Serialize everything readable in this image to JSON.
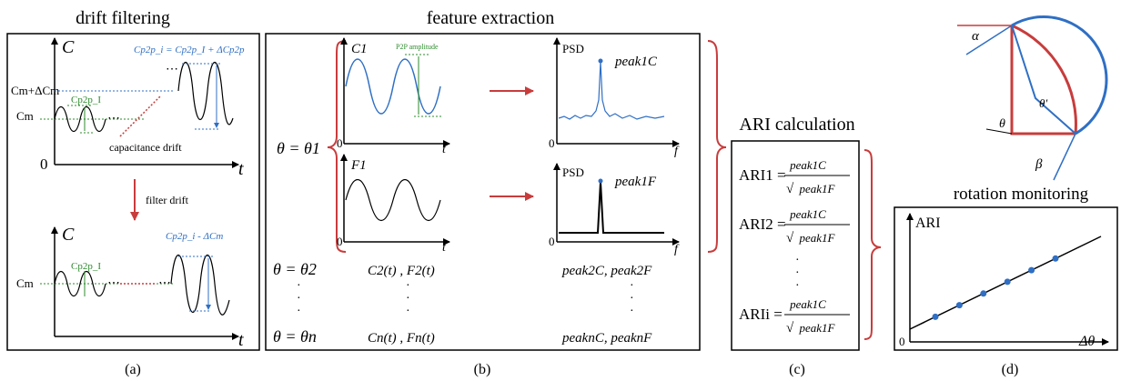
{
  "titles": {
    "a": "drift filtering",
    "b": "feature extraction",
    "c": "ARI calculation",
    "d": "rotation monitoring"
  },
  "panel_labels": {
    "a": "(a)",
    "b": "(b)",
    "c": "(c)",
    "d": "(d)"
  },
  "panel_a": {
    "axis_y": "C",
    "axis_x": "t",
    "origin": "0",
    "level_cm": "Cm",
    "level_cm_delta": "Cm+ΔCm",
    "p2p_label": "Cp2p_I",
    "drift_eq": "Cp2p_i = Cp2p_I + ΔCp2p",
    "drift_note": "capacitance drift",
    "arrow_label": "filter drift",
    "filtered_eq": "Cp2p_i - ΔCm",
    "colors": {
      "blue": "#2f6fc4",
      "green": "#2e8b2e",
      "red": "#c83c3c"
    }
  },
  "panel_b": {
    "theta_1": "θ = θ1",
    "c1_label": "C1",
    "f1_label": "F1",
    "psd_label": "PSD",
    "amplitude_note": "P2P amplitude",
    "peak_c": "peak1C",
    "peak_f": "peak1F",
    "axis_t": "t",
    "axis_f": "f",
    "origin": "0",
    "theta_2": "θ = θ2",
    "signals_2": "C2(t) , F2(t)",
    "peaks_2": "peak2C, peak2F",
    "theta_n": "θ = θn",
    "signals_n": "Cn(t) , Fn(t)",
    "peaks_n": "peaknC, peaknF"
  },
  "panel_c": {
    "rows": [
      {
        "lhs": "ARI1 =",
        "num": "peak1C",
        "den": "peak1F"
      },
      {
        "lhs": "ARI2 =",
        "num": "peak1C",
        "den": "peak1F"
      },
      {
        "lhs": "ARIi =",
        "num": "peak1C",
        "den": "peak1F"
      }
    ]
  },
  "panel_d": {
    "angle_alpha": "α",
    "angle_beta": "β",
    "angle_theta": "θ",
    "angle_theta_prime": "θ′",
    "axis_y": "ARI",
    "axis_x": "Δθ",
    "origin": "0",
    "points_count": 6
  }
}
